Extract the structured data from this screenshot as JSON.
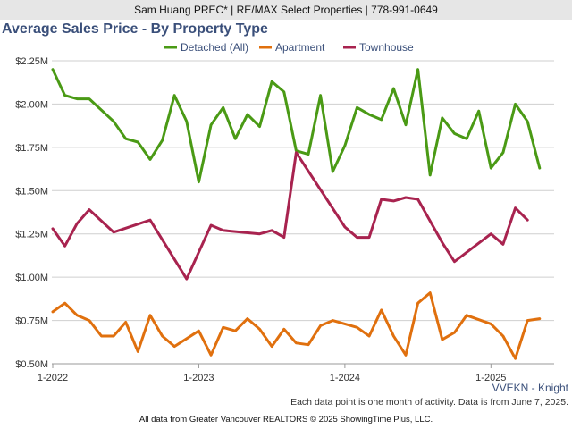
{
  "header": {
    "agent_line": "Sam Huang PREC* | RE/MAX Select Properties | 778-991-0649"
  },
  "title": "Average Sales Price - By Property Type",
  "region_label": "VVEKN - Knight",
  "note": "Each data point is one month of activity. Data is from June 7, 2025.",
  "footer": "All data from Greater Vancouver REALTORS © 2025 ShowingTime Plus, LLC.",
  "colors": {
    "detached": "#4a9a15",
    "apartment": "#e0700e",
    "townhouse": "#a8234f",
    "grid": "#cfcfcf",
    "axis_text": "#333333"
  },
  "chart_data": {
    "type": "line",
    "title": "Average Sales Price - By Property Type",
    "x": [
      "2022-01",
      "2022-02",
      "2022-03",
      "2022-04",
      "2022-05",
      "2022-06",
      "2022-07",
      "2022-08",
      "2022-09",
      "2022-10",
      "2022-11",
      "2022-12",
      "2023-01",
      "2023-02",
      "2023-03",
      "2023-04",
      "2023-05",
      "2023-06",
      "2023-07",
      "2023-08",
      "2023-09",
      "2023-10",
      "2023-11",
      "2023-12",
      "2024-01",
      "2024-02",
      "2024-03",
      "2024-04",
      "2024-05",
      "2024-06",
      "2024-07",
      "2024-08",
      "2024-09",
      "2024-10",
      "2024-11",
      "2024-12",
      "2025-01",
      "2025-02",
      "2025-03",
      "2025-04",
      "2025-05"
    ],
    "x_ticks": [
      "1-2022",
      "1-2023",
      "1-2024",
      "1-2025"
    ],
    "y_ticks": [
      "$0.50M",
      "$0.75M",
      "$1.00M",
      "$1.25M",
      "$1.50M",
      "$1.75M",
      "$2.00M",
      "$2.25M"
    ],
    "ylim": [
      0.5,
      2.25
    ],
    "y_unit": "$M",
    "grid": true,
    "legend_position": "top",
    "series": [
      {
        "name": "Detached (All)",
        "key": "detached",
        "values": [
          2.2,
          2.05,
          2.03,
          2.03,
          null,
          1.9,
          1.8,
          1.78,
          1.68,
          1.79,
          2.05,
          1.9,
          1.55,
          1.88,
          1.98,
          1.8,
          1.94,
          1.87,
          2.13,
          2.07,
          1.73,
          1.71,
          2.05,
          1.61,
          1.76,
          1.98,
          1.94,
          1.91,
          2.09,
          1.88,
          2.2,
          1.59,
          1.92,
          1.83,
          1.8,
          1.96,
          1.63,
          1.72,
          2.0,
          1.9,
          1.63
        ]
      },
      {
        "name": "Apartment",
        "key": "apartment",
        "values": [
          0.8,
          0.85,
          0.78,
          0.75,
          0.66,
          0.66,
          0.74,
          0.57,
          0.78,
          0.66,
          0.6,
          null,
          0.69,
          0.55,
          0.71,
          0.69,
          0.76,
          0.7,
          0.6,
          0.7,
          0.62,
          0.61,
          0.72,
          0.75,
          null,
          0.71,
          0.66,
          0.81,
          0.66,
          0.55,
          0.85,
          0.91,
          0.64,
          0.68,
          0.78,
          null,
          0.73,
          0.66,
          0.53,
          0.75,
          0.76
        ]
      },
      {
        "name": "Townhouse",
        "key": "townhouse",
        "values": [
          1.28,
          1.18,
          1.31,
          1.39,
          null,
          1.26,
          null,
          null,
          1.33,
          null,
          null,
          0.99,
          null,
          1.3,
          1.27,
          null,
          null,
          1.25,
          1.27,
          1.23,
          1.72,
          null,
          null,
          null,
          1.29,
          1.23,
          1.23,
          1.45,
          1.44,
          1.46,
          1.45,
          null,
          1.2,
          1.09,
          null,
          null,
          1.25,
          1.19,
          1.4,
          1.33,
          null
        ]
      }
    ]
  }
}
